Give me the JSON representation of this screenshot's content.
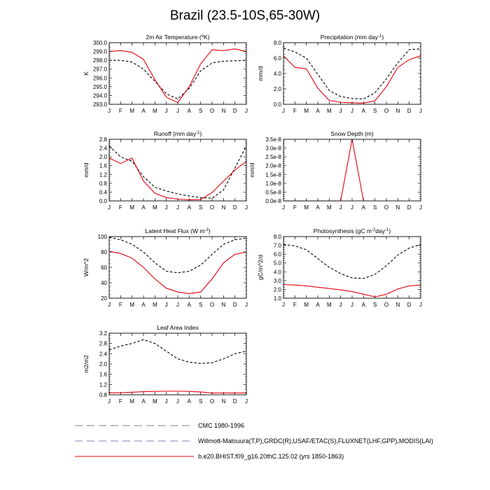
{
  "title": "Brazil (23.5-10S,65-30W)",
  "months": [
    "J",
    "F",
    "M",
    "A",
    "M",
    "J",
    "J",
    "A",
    "S",
    "O",
    "N",
    "D",
    "J"
  ],
  "colors": {
    "obs": "#000000",
    "model": "#e8000b",
    "legend_obs": "#7f7fbf",
    "legend_cmc": "#7f7f7f"
  },
  "legend": [
    {
      "label": "CMC 1980-1996",
      "style": "cmc"
    },
    {
      "label": "Willmott-Matsuura(T,P),GRDC(R),USAF/ETAC(S),FLUXNET(LHF,GPP),MODIS(LAI)",
      "style": "obs"
    },
    {
      "label": "b.e20.BHIST.f09_g16.20thC.125.02 (yrs 1850-1863)",
      "style": "model"
    }
  ],
  "chart_data": [
    {
      "type": "line",
      "title_parts": [
        [
          "2m Air Temperature (",
          ""
        ],
        [
          "o",
          "sup"
        ],
        [
          "K)",
          ""
        ]
      ],
      "ylabel": "K",
      "ylim": [
        293,
        300
      ],
      "yticks": [
        293,
        294,
        295,
        296,
        297,
        298,
        299,
        300
      ],
      "tick_decimals": 1,
      "series": [
        {
          "name": "obs",
          "style": "dashed",
          "values": [
            298.0,
            298.0,
            297.8,
            297.0,
            295.6,
            294.2,
            293.6,
            294.8,
            296.8,
            297.7,
            297.9,
            297.95,
            298.0
          ]
        },
        {
          "name": "model",
          "style": "solid",
          "values": [
            299.0,
            299.1,
            298.9,
            298.1,
            295.8,
            293.8,
            293.2,
            295.0,
            297.6,
            299.2,
            299.1,
            299.3,
            299.0
          ]
        }
      ]
    },
    {
      "type": "line",
      "title_parts": [
        [
          "Precipitation (mm day",
          ""
        ],
        [
          "-1",
          "sup"
        ],
        [
          ")",
          ""
        ]
      ],
      "ylabel": "mm/d",
      "ylim": [
        0,
        8
      ],
      "yticks": [
        0,
        2,
        4,
        6,
        8
      ],
      "tick_decimals": 1,
      "series": [
        {
          "name": "obs",
          "style": "dashed",
          "values": [
            7.3,
            6.8,
            6.0,
            3.9,
            1.8,
            1.0,
            0.75,
            0.7,
            1.5,
            3.3,
            5.4,
            7.1,
            7.2
          ]
        },
        {
          "name": "model",
          "style": "solid",
          "values": [
            6.3,
            4.8,
            4.6,
            2.1,
            0.5,
            0.25,
            0.2,
            0.15,
            0.45,
            2.3,
            4.8,
            5.8,
            6.3
          ]
        }
      ]
    },
    {
      "type": "line",
      "title_parts": [
        [
          "Runoff (mm day",
          ""
        ],
        [
          "-1",
          "sup"
        ],
        [
          ")",
          ""
        ]
      ],
      "ylabel": "mm/d",
      "ylim": [
        0,
        2.8
      ],
      "yticks": [
        0,
        0.4,
        0.8,
        1.2,
        1.6,
        2.0,
        2.4,
        2.8
      ],
      "tick_decimals": 1,
      "series": [
        {
          "name": "obs",
          "style": "dashed",
          "values": [
            2.5,
            2.0,
            1.8,
            1.1,
            0.62,
            0.45,
            0.32,
            0.22,
            0.15,
            0.12,
            0.5,
            1.5,
            2.5
          ]
        },
        {
          "name": "model",
          "style": "solid",
          "values": [
            1.95,
            1.7,
            1.95,
            0.9,
            0.35,
            0.15,
            0.08,
            0.05,
            0.06,
            0.38,
            0.9,
            1.4,
            1.8
          ]
        }
      ]
    },
    {
      "type": "line",
      "title_parts": [
        [
          "Snow Depth (m)",
          ""
        ]
      ],
      "ylabel": "mm/d",
      "ylim": [
        0,
        3.5e-08
      ],
      "yticks": [
        0,
        5e-09,
        1e-08,
        1.5e-08,
        2e-08,
        2.5e-08,
        3e-08,
        3.5e-08
      ],
      "tick_labels": [
        "0.0e-8",
        "0.5e-8",
        "1.0e-8",
        "1.5e-8",
        "2.0e-8",
        "2.5e-8",
        "3.0e-8",
        "3.5e-8"
      ],
      "series": [
        {
          "name": "model",
          "style": "solid",
          "values": [
            0,
            0,
            0,
            0,
            0,
            0,
            3.5e-08,
            0,
            null,
            null,
            null,
            null,
            null
          ]
        }
      ]
    },
    {
      "type": "line",
      "title_parts": [
        [
          "Latent Heat Flux (W m",
          ""
        ],
        [
          "-2",
          "sup"
        ],
        [
          ")",
          ""
        ]
      ],
      "ylabel": "W/m^2",
      "ylim": [
        20,
        100
      ],
      "yticks": [
        20,
        40,
        60,
        80,
        100
      ],
      "tick_decimals": 0,
      "series": [
        {
          "name": "obs",
          "style": "dashed",
          "values": [
            99,
            96,
            90,
            80,
            66,
            55,
            53,
            55,
            63,
            77,
            90,
            96,
            98
          ]
        },
        {
          "name": "model",
          "style": "solid",
          "values": [
            81,
            78,
            72,
            60,
            45,
            33,
            28,
            26,
            28,
            45,
            66,
            77,
            80
          ]
        }
      ]
    },
    {
      "type": "line",
      "title_parts": [
        [
          "Photosynthesis (gC m",
          ""
        ],
        [
          "-2",
          "sup"
        ],
        [
          "day",
          ""
        ],
        [
          "-1",
          "sup"
        ],
        [
          ")",
          ""
        ]
      ],
      "ylabel": "gC/m^2/d",
      "ylim": [
        1,
        8
      ],
      "yticks": [
        1,
        2,
        3,
        4,
        5,
        6,
        7,
        8
      ],
      "tick_decimals": 1,
      "series": [
        {
          "name": "obs",
          "style": "dashed",
          "values": [
            7.1,
            6.95,
            6.5,
            5.5,
            4.5,
            3.8,
            3.3,
            3.25,
            3.7,
            4.7,
            5.9,
            6.7,
            7.1
          ]
        },
        {
          "name": "model",
          "style": "solid",
          "values": [
            2.55,
            2.5,
            2.4,
            2.25,
            2.1,
            1.95,
            1.75,
            1.45,
            1.15,
            1.45,
            2.05,
            2.4,
            2.5
          ]
        }
      ]
    },
    {
      "type": "line",
      "title_parts": [
        [
          "Leaf Area Index",
          ""
        ]
      ],
      "ylabel": "m2/m2",
      "ylim": [
        0.8,
        3.2
      ],
      "yticks": [
        0.8,
        1.2,
        1.6,
        2.0,
        2.4,
        2.8,
        3.2
      ],
      "tick_decimals": 1,
      "series": [
        {
          "name": "obs",
          "style": "dashed",
          "values": [
            2.55,
            2.7,
            2.8,
            2.95,
            2.8,
            2.5,
            2.2,
            2.07,
            2.02,
            2.05,
            2.2,
            2.4,
            2.5
          ]
        },
        {
          "name": "model",
          "style": "solid",
          "values": [
            0.88,
            0.88,
            0.9,
            0.92,
            0.93,
            0.94,
            0.94,
            0.93,
            0.91,
            0.87,
            0.87,
            0.87,
            0.87
          ]
        }
      ]
    }
  ]
}
